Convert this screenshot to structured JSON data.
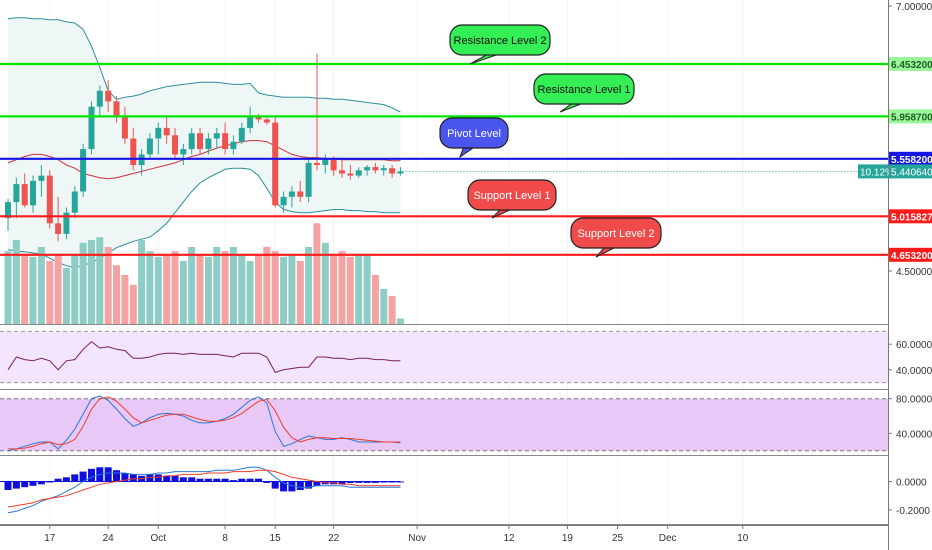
{
  "chart_data": {
    "type": "candlestick",
    "main": {
      "ylim": [
        4.3,
        7.0
      ],
      "yticks": [
        "7.000000",
        "4.500000"
      ],
      "horizontal_levels": [
        {
          "name": "Resistance Level 2",
          "value": 6.4532,
          "label": "6.453200",
          "color": "#00e600"
        },
        {
          "name": "Resistance Level 1",
          "value": 5.9587,
          "label": "5.958700",
          "color": "#00e600"
        },
        {
          "name": "Pivot Level",
          "value": 5.5582,
          "label": "5.558200",
          "color": "#1515e6"
        },
        {
          "name": "Support Level 1",
          "value": 5.015827,
          "label": "5.015827",
          "color": "#ff1a1a"
        },
        {
          "name": "Support Level 2",
          "value": 4.6532,
          "label": "4.653200",
          "color": "#ff1a1a"
        }
      ],
      "level_callouts": [
        "Resistance Level 2",
        "Resistance Level 1",
        "Pivot Level",
        "Support Level 1",
        "Support Level 2"
      ],
      "last_price_label": "5.440640",
      "last_change_label": "10.12%",
      "candles": [
        [
          5.0,
          5.18,
          4.88,
          5.15
        ],
        [
          5.15,
          5.38,
          5.0,
          5.32
        ],
        [
          5.32,
          5.42,
          5.1,
          5.12
        ],
        [
          5.12,
          5.4,
          5.05,
          5.35
        ],
        [
          5.35,
          5.5,
          5.2,
          5.4
        ],
        [
          5.4,
          5.45,
          4.9,
          4.95
        ],
        [
          4.95,
          5.2,
          4.78,
          4.85
        ],
        [
          4.85,
          5.1,
          4.8,
          5.05
        ],
        [
          5.05,
          5.3,
          5.0,
          5.25
        ],
        [
          5.25,
          5.7,
          5.2,
          5.65
        ],
        [
          5.65,
          6.1,
          5.6,
          6.05
        ],
        [
          6.05,
          6.25,
          5.95,
          6.2
        ],
        [
          6.2,
          6.3,
          6.0,
          6.1
        ],
        [
          6.1,
          6.15,
          5.9,
          5.95
        ],
        [
          5.95,
          6.05,
          5.7,
          5.75
        ],
        [
          5.75,
          5.85,
          5.45,
          5.5
        ],
        [
          5.5,
          5.65,
          5.4,
          5.6
        ],
        [
          5.6,
          5.8,
          5.55,
          5.75
        ],
        [
          5.75,
          5.9,
          5.6,
          5.85
        ],
        [
          5.85,
          5.95,
          5.7,
          5.78
        ],
        [
          5.78,
          5.85,
          5.55,
          5.6
        ],
        [
          5.6,
          5.7,
          5.5,
          5.65
        ],
        [
          5.65,
          5.85,
          5.6,
          5.8
        ],
        [
          5.8,
          5.85,
          5.6,
          5.65
        ],
        [
          5.65,
          5.8,
          5.6,
          5.75
        ],
        [
          5.75,
          5.85,
          5.65,
          5.8
        ],
        [
          5.8,
          5.9,
          5.6,
          5.65
        ],
        [
          5.65,
          5.78,
          5.6,
          5.72
        ],
        [
          5.72,
          5.9,
          5.7,
          5.85
        ],
        [
          5.85,
          6.05,
          5.8,
          5.95
        ],
        [
          5.95,
          5.98,
          5.9,
          5.93
        ],
        [
          5.93,
          5.96,
          5.88,
          5.9
        ],
        [
          5.9,
          5.95,
          5.1,
          5.12
        ],
        [
          5.12,
          5.25,
          5.05,
          5.2
        ],
        [
          5.2,
          5.3,
          5.1,
          5.25
        ],
        [
          5.25,
          5.35,
          5.15,
          5.2
        ],
        [
          5.2,
          5.55,
          5.15,
          5.52
        ],
        [
          5.52,
          6.55,
          5.45,
          5.5
        ],
        [
          5.5,
          5.6,
          5.42,
          5.55
        ],
        [
          5.55,
          5.58,
          5.4,
          5.45
        ],
        [
          5.45,
          5.55,
          5.38,
          5.42
        ],
        [
          5.42,
          5.5,
          5.36,
          5.4
        ],
        [
          5.4,
          5.48,
          5.38,
          5.45
        ],
        [
          5.45,
          5.5,
          5.4,
          5.48
        ],
        [
          5.48,
          5.52,
          5.42,
          5.45
        ],
        [
          5.45,
          5.5,
          5.4,
          5.47
        ],
        [
          5.47,
          5.5,
          5.38,
          5.42
        ],
        [
          5.42,
          5.48,
          5.4,
          5.44
        ]
      ],
      "upper_band": [
        6.88,
        6.89,
        6.89,
        6.88,
        6.88,
        6.87,
        6.87,
        6.85,
        6.84,
        6.78,
        6.62,
        6.42,
        6.2,
        6.12,
        6.14,
        6.15,
        6.17,
        6.2,
        6.22,
        6.24,
        6.25,
        6.26,
        6.27,
        6.28,
        6.28,
        6.28,
        6.27,
        6.26,
        6.26,
        6.27,
        6.18,
        6.16,
        6.15,
        6.14,
        6.14,
        6.14,
        6.14,
        6.13,
        6.13,
        6.12,
        6.12,
        6.11,
        6.1,
        6.09,
        6.08,
        6.07,
        6.04,
        6.0
      ],
      "middle_band": [
        5.52,
        5.55,
        5.58,
        5.6,
        5.6,
        5.58,
        5.55,
        5.5,
        5.47,
        5.42,
        5.4,
        5.38,
        5.37,
        5.38,
        5.4,
        5.42,
        5.44,
        5.46,
        5.48,
        5.5,
        5.52,
        5.55,
        5.58,
        5.6,
        5.63,
        5.66,
        5.68,
        5.7,
        5.72,
        5.73,
        5.73,
        5.72,
        5.68,
        5.64,
        5.6,
        5.58,
        5.57,
        5.57,
        5.56,
        5.56,
        5.55,
        5.55,
        5.55,
        5.55,
        5.55,
        5.55,
        5.54,
        5.54
      ],
      "lower_band": [
        4.7,
        4.69,
        4.68,
        4.67,
        4.66,
        4.62,
        4.58,
        4.55,
        4.53,
        4.55,
        4.58,
        4.62,
        4.67,
        4.72,
        4.75,
        4.78,
        4.8,
        4.82,
        4.88,
        4.95,
        5.05,
        5.15,
        5.25,
        5.33,
        5.38,
        5.42,
        5.46,
        5.47,
        5.47,
        5.46,
        5.4,
        5.28,
        5.15,
        5.08,
        5.06,
        5.05,
        5.05,
        5.06,
        5.07,
        5.08,
        5.08,
        5.07,
        5.07,
        5.06,
        5.06,
        5.05,
        5.05,
        5.05
      ],
      "volume": [
        0.52,
        0.6,
        0.5,
        0.48,
        0.55,
        0.45,
        0.5,
        0.4,
        0.5,
        0.58,
        0.6,
        0.62,
        0.55,
        0.42,
        0.35,
        0.28,
        0.6,
        0.52,
        0.48,
        0.5,
        0.52,
        0.45,
        0.55,
        0.5,
        0.48,
        0.55,
        0.52,
        0.55,
        0.5,
        0.45,
        0.5,
        0.55,
        0.52,
        0.48,
        0.5,
        0.45,
        0.55,
        0.72,
        0.58,
        0.5,
        0.52,
        0.48,
        0.5,
        0.5,
        0.35,
        0.25,
        0.2,
        0.04
      ]
    },
    "rsi": {
      "yticks": [
        "60.0000",
        "40.0000"
      ],
      "ylim": [
        25,
        75
      ],
      "band": [
        70,
        30
      ],
      "values": [
        40,
        50,
        48,
        47,
        49,
        47,
        40,
        47,
        48,
        56,
        62,
        57,
        58,
        56,
        55,
        49,
        49,
        50,
        52,
        53,
        53,
        52,
        53,
        52,
        52,
        52,
        51,
        50,
        53,
        53,
        53,
        50,
        38,
        40,
        41,
        42,
        42,
        50,
        50,
        49,
        49,
        48,
        49,
        49,
        48,
        48,
        47,
        47
      ]
    },
    "stoch": {
      "yticks": [
        "80.0000",
        "40.0000"
      ],
      "ylim": [
        15,
        90
      ],
      "band": [
        80,
        20
      ],
      "k": [
        20,
        22,
        25,
        28,
        30,
        30,
        22,
        32,
        45,
        62,
        80,
        83,
        78,
        68,
        57,
        48,
        52,
        58,
        62,
        63,
        62,
        60,
        55,
        52,
        52,
        54,
        57,
        62,
        70,
        78,
        82,
        75,
        42,
        25,
        28,
        33,
        37,
        35,
        33,
        33,
        35,
        33,
        30,
        30,
        30,
        30,
        30,
        29
      ],
      "d": [
        22,
        22,
        23,
        25,
        28,
        30,
        27,
        28,
        33,
        48,
        68,
        80,
        82,
        77,
        68,
        58,
        52,
        55,
        58,
        61,
        62,
        62,
        59,
        56,
        54,
        54,
        55,
        58,
        63,
        70,
        77,
        79,
        66,
        47,
        35,
        30,
        33,
        35,
        35,
        34,
        34,
        34,
        33,
        32,
        31,
        30,
        30,
        30
      ]
    },
    "macd": {
      "yticks": [
        "0.0000",
        "-0.2000"
      ],
      "ylim": [
        -0.3,
        0.18
      ],
      "hist": [
        -0.06,
        -0.05,
        -0.04,
        -0.03,
        -0.02,
        0,
        0.02,
        0.03,
        0.05,
        0.07,
        0.09,
        0.1,
        0.1,
        0.08,
        0.06,
        0.05,
        0.04,
        0.05,
        0.05,
        0.04,
        0.04,
        0.03,
        0.03,
        0.02,
        0.02,
        0.02,
        0.02,
        0.01,
        0.02,
        0.02,
        0.02,
        -0.01,
        -0.05,
        -0.07,
        -0.07,
        -0.06,
        -0.05,
        -0.03,
        -0.02,
        -0.02,
        -0.02,
        -0.01,
        -0.01,
        -0.01,
        -0.01,
        0,
        0,
        0
      ],
      "macd": [
        -0.22,
        -0.21,
        -0.19,
        -0.17,
        -0.14,
        -0.12,
        -0.1,
        -0.07,
        -0.04,
        0,
        0.03,
        0.05,
        0.06,
        0.06,
        0.06,
        0.05,
        0.05,
        0.05,
        0.06,
        0.06,
        0.07,
        0.07,
        0.07,
        0.07,
        0.07,
        0.08,
        0.08,
        0.08,
        0.09,
        0.1,
        0.1,
        0.08,
        0.03,
        -0.01,
        -0.03,
        -0.04,
        -0.04,
        -0.03,
        -0.03,
        -0.03,
        -0.03,
        -0.04,
        -0.04,
        -0.04,
        -0.04,
        -0.04,
        -0.04,
        -0.04
      ],
      "signal": [
        -0.18,
        -0.17,
        -0.16,
        -0.15,
        -0.13,
        -0.12,
        -0.11,
        -0.1,
        -0.08,
        -0.06,
        -0.04,
        -0.02,
        -0.01,
        0,
        0.01,
        0.02,
        0.02,
        0.03,
        0.03,
        0.04,
        0.04,
        0.05,
        0.05,
        0.05,
        0.06,
        0.06,
        0.06,
        0.07,
        0.07,
        0.07,
        0.08,
        0.08,
        0.07,
        0.05,
        0.03,
        0.02,
        0.01,
        0,
        -0.01,
        -0.01,
        -0.02,
        -0.02,
        -0.03,
        -0.03,
        -0.03,
        -0.03,
        -0.03,
        -0.03
      ]
    },
    "x_tick_labels": [
      {
        "label": "17",
        "index": 5
      },
      {
        "label": "24",
        "index": 12
      },
      {
        "label": "Oct",
        "index": 18
      },
      {
        "label": "8",
        "index": 26
      },
      {
        "label": "15",
        "index": 32
      },
      {
        "label": "22",
        "index": 39
      },
      {
        "label": "Nov",
        "index": 49
      },
      {
        "label": "12",
        "index": 60
      },
      {
        "label": "19",
        "index": 67
      },
      {
        "label": "25",
        "index": 73
      },
      {
        "label": "Dec",
        "index": 79
      },
      {
        "label": "10",
        "index": 88
      }
    ],
    "colors": {
      "up": "#26a69a",
      "down": "#ef5350",
      "volume_up": "#8ecdc6",
      "volume_down": "#f3a3a1",
      "band_fill": "#eef6f6",
      "band_line": "#2a8f9e",
      "middle_band": "#d1303a",
      "rsi_fill": "#f3e5fb",
      "rsi_line": "#7b1f58",
      "stoch_fill": "#e7c8f7",
      "stoch_k": "#2c76d6",
      "stoch_d": "#f03c2a",
      "macd_hist": "#1010dd",
      "macd_line": "#2c76d6",
      "signal_line": "#f03c2a"
    }
  }
}
